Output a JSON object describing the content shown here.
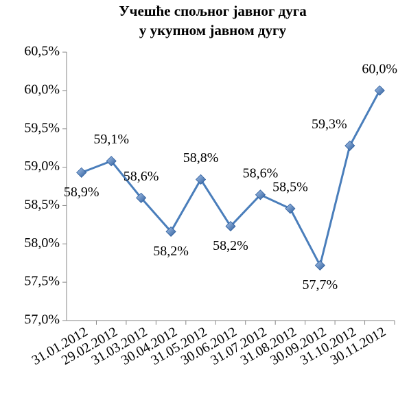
{
  "chart_data": {
    "type": "line",
    "title": [
      "Учешће спољног јавног дуга",
      "у укупном јавном дугу"
    ],
    "categories": [
      "31.01.2012",
      "29.02.2012",
      "31.03.2012",
      "30.04.2012",
      "31.05.2012",
      "30.06.2012",
      "31.07.2012",
      "31.08.2012",
      "30.09.2012",
      "31.10.2012",
      "30.11.2012"
    ],
    "values": [
      58.93,
      59.08,
      58.6,
      58.16,
      58.84,
      58.23,
      58.64,
      58.46,
      57.72,
      59.28,
      60.0
    ],
    "value_labels": [
      "58,9%",
      "59,1%",
      "58,6%",
      "58,2%",
      "58,8%",
      "58,2%",
      "58,6%",
      "58,5%",
      "57,7%",
      "59,3%",
      "60,0%"
    ],
    "color": "#4a7ebb",
    "ylim": [
      57.0,
      60.5
    ],
    "yticks": [
      {
        "value": 57.0,
        "label": "57,0%"
      },
      {
        "value": 57.5,
        "label": "57,5%"
      },
      {
        "value": 58.0,
        "label": "58,0%"
      },
      {
        "value": 58.5,
        "label": "58,5%"
      },
      {
        "value": 59.0,
        "label": "59,0%"
      },
      {
        "value": 59.5,
        "label": "59,5%"
      },
      {
        "value": 60.0,
        "label": "60,0%"
      },
      {
        "value": 60.5,
        "label": "60,5%"
      }
    ]
  }
}
